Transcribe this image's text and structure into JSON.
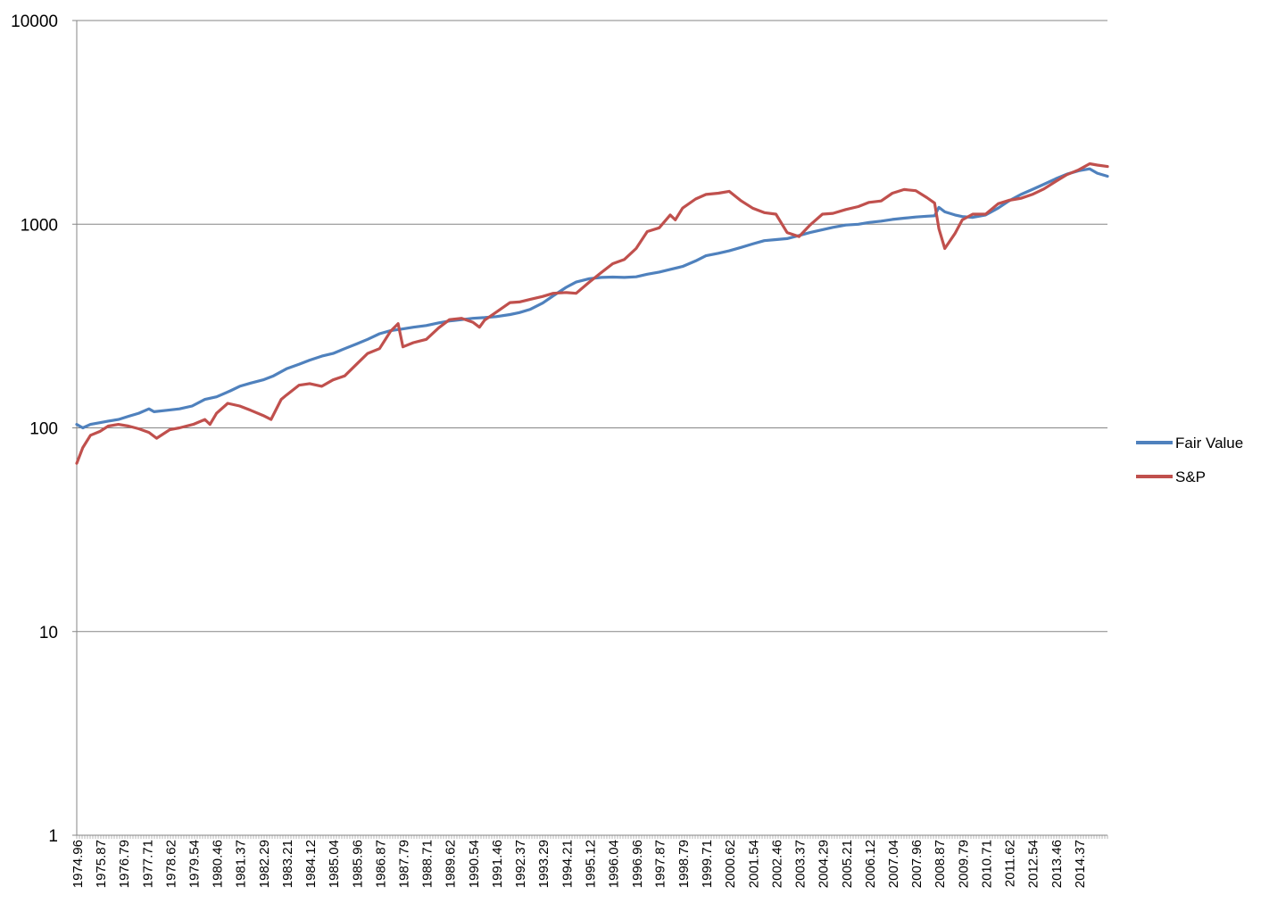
{
  "chart_data": {
    "type": "line",
    "title": "",
    "xlabel": "",
    "ylabel": "",
    "y_scale": "log",
    "ylim": [
      1,
      10000
    ],
    "xlim": [
      1974.96,
      2015.5
    ],
    "y_ticks": [
      "1",
      "10",
      "100",
      "1000",
      "10000"
    ],
    "x_ticks": [
      "1974.96",
      "1975.87",
      "1976.79",
      "1977.71",
      "1978.62",
      "1979.54",
      "1980.46",
      "1981.37",
      "1982.29",
      "1983.21",
      "1984.12",
      "1985.04",
      "1985.96",
      "1986.87",
      "1987.79",
      "1988.71",
      "1989.62",
      "1990.54",
      "1991.46",
      "1992.37",
      "1993.29",
      "1994.21",
      "1995.12",
      "1996.04",
      "1996.96",
      "1997.87",
      "1998.79",
      "1999.71",
      "2000.62",
      "2001.54",
      "2002.46",
      "2003.37",
      "2004.29",
      "2005.21",
      "2006.12",
      "2007.04",
      "2007.96",
      "2008.87",
      "2009.79",
      "2010.71",
      "2011.62",
      "2012.54",
      "2013.46",
      "2014.37"
    ],
    "grid": "horizontal major gridlines",
    "legend_position": "right",
    "colors": {
      "Fair Value": "#4f81bd",
      "S&P": "#c0504d"
    },
    "series": [
      {
        "name": "Fair Value",
        "color": "#4f81bd",
        "points": [
          [
            1974.96,
            104
          ],
          [
            1975.2,
            100
          ],
          [
            1975.5,
            104
          ],
          [
            1975.87,
            106
          ],
          [
            1976.2,
            108
          ],
          [
            1976.6,
            110
          ],
          [
            1977.0,
            114
          ],
          [
            1977.4,
            118
          ],
          [
            1977.8,
            124
          ],
          [
            1978.0,
            120
          ],
          [
            1978.5,
            122
          ],
          [
            1979.0,
            124
          ],
          [
            1979.5,
            128
          ],
          [
            1980.0,
            138
          ],
          [
            1980.46,
            142
          ],
          [
            1981.0,
            152
          ],
          [
            1981.37,
            160
          ],
          [
            1981.8,
            166
          ],
          [
            1982.29,
            172
          ],
          [
            1982.7,
            180
          ],
          [
            1983.21,
            195
          ],
          [
            1983.7,
            205
          ],
          [
            1984.12,
            215
          ],
          [
            1984.6,
            225
          ],
          [
            1985.04,
            232
          ],
          [
            1985.5,
            245
          ],
          [
            1985.96,
            258
          ],
          [
            1986.4,
            272
          ],
          [
            1986.87,
            290
          ],
          [
            1987.3,
            300
          ],
          [
            1987.79,
            306
          ],
          [
            1988.2,
            312
          ],
          [
            1988.71,
            318
          ],
          [
            1989.2,
            328
          ],
          [
            1989.62,
            335
          ],
          [
            1990.1,
            340
          ],
          [
            1990.54,
            345
          ],
          [
            1991.0,
            348
          ],
          [
            1991.46,
            352
          ],
          [
            1992.0,
            360
          ],
          [
            1992.37,
            368
          ],
          [
            1992.8,
            382
          ],
          [
            1993.29,
            410
          ],
          [
            1993.7,
            445
          ],
          [
            1994.21,
            490
          ],
          [
            1994.6,
            520
          ],
          [
            1995.12,
            540
          ],
          [
            1995.6,
            548
          ],
          [
            1996.04,
            550
          ],
          [
            1996.5,
            548
          ],
          [
            1996.96,
            552
          ],
          [
            1997.4,
            568
          ],
          [
            1997.87,
            582
          ],
          [
            1998.3,
            600
          ],
          [
            1998.79,
            620
          ],
          [
            1999.3,
            660
          ],
          [
            1999.71,
            700
          ],
          [
            2000.2,
            720
          ],
          [
            2000.62,
            740
          ],
          [
            2001.1,
            770
          ],
          [
            2001.54,
            800
          ],
          [
            2002.0,
            830
          ],
          [
            2002.46,
            840
          ],
          [
            2002.9,
            850
          ],
          [
            2003.37,
            880
          ],
          [
            2003.8,
            910
          ],
          [
            2004.29,
            940
          ],
          [
            2004.7,
            965
          ],
          [
            2005.21,
            990
          ],
          [
            2005.7,
            1000
          ],
          [
            2006.12,
            1020
          ],
          [
            2006.6,
            1035
          ],
          [
            2007.04,
            1055
          ],
          [
            2007.5,
            1070
          ],
          [
            2007.96,
            1085
          ],
          [
            2008.4,
            1095
          ],
          [
            2008.7,
            1100
          ],
          [
            2008.87,
            1210
          ],
          [
            2009.1,
            1150
          ],
          [
            2009.5,
            1110
          ],
          [
            2009.79,
            1090
          ],
          [
            2010.2,
            1080
          ],
          [
            2010.71,
            1110
          ],
          [
            2011.2,
            1200
          ],
          [
            2011.62,
            1300
          ],
          [
            2012.1,
            1400
          ],
          [
            2012.54,
            1480
          ],
          [
            2013.0,
            1570
          ],
          [
            2013.46,
            1670
          ],
          [
            2013.9,
            1760
          ],
          [
            2014.37,
            1830
          ],
          [
            2014.8,
            1870
          ],
          [
            2015.1,
            1780
          ],
          [
            2015.5,
            1720
          ]
        ]
      },
      {
        "name": "S&P",
        "color": "#c0504d",
        "points": [
          [
            1974.96,
            67
          ],
          [
            1975.2,
            80
          ],
          [
            1975.5,
            92
          ],
          [
            1975.87,
            96
          ],
          [
            1976.2,
            102
          ],
          [
            1976.6,
            104
          ],
          [
            1977.0,
            102
          ],
          [
            1977.4,
            99
          ],
          [
            1977.8,
            95
          ],
          [
            1978.1,
            89
          ],
          [
            1978.62,
            98
          ],
          [
            1979.0,
            100
          ],
          [
            1979.54,
            104
          ],
          [
            1980.0,
            110
          ],
          [
            1980.2,
            104
          ],
          [
            1980.46,
            118
          ],
          [
            1980.9,
            132
          ],
          [
            1981.37,
            128
          ],
          [
            1981.8,
            122
          ],
          [
            1982.29,
            115
          ],
          [
            1982.6,
            110
          ],
          [
            1983.0,
            138
          ],
          [
            1983.21,
            145
          ],
          [
            1983.7,
            162
          ],
          [
            1984.12,
            165
          ],
          [
            1984.6,
            160
          ],
          [
            1985.04,
            172
          ],
          [
            1985.5,
            180
          ],
          [
            1985.96,
            205
          ],
          [
            1986.4,
            232
          ],
          [
            1986.87,
            245
          ],
          [
            1987.3,
            298
          ],
          [
            1987.6,
            325
          ],
          [
            1987.79,
            250
          ],
          [
            1988.2,
            262
          ],
          [
            1988.71,
            272
          ],
          [
            1989.2,
            310
          ],
          [
            1989.62,
            340
          ],
          [
            1990.1,
            345
          ],
          [
            1990.54,
            330
          ],
          [
            1990.8,
            312
          ],
          [
            1991.0,
            338
          ],
          [
            1991.46,
            370
          ],
          [
            1992.0,
            412
          ],
          [
            1992.37,
            415
          ],
          [
            1992.8,
            428
          ],
          [
            1993.29,
            442
          ],
          [
            1993.7,
            458
          ],
          [
            1994.21,
            462
          ],
          [
            1994.6,
            458
          ],
          [
            1995.12,
            520
          ],
          [
            1995.6,
            580
          ],
          [
            1996.04,
            640
          ],
          [
            1996.5,
            672
          ],
          [
            1996.96,
            760
          ],
          [
            1997.4,
            920
          ],
          [
            1997.87,
            960
          ],
          [
            1998.3,
            1110
          ],
          [
            1998.5,
            1050
          ],
          [
            1998.79,
            1200
          ],
          [
            1999.3,
            1330
          ],
          [
            1999.71,
            1400
          ],
          [
            2000.2,
            1420
          ],
          [
            2000.62,
            1450
          ],
          [
            2001.1,
            1300
          ],
          [
            2001.54,
            1200
          ],
          [
            2002.0,
            1140
          ],
          [
            2002.46,
            1120
          ],
          [
            2002.9,
            910
          ],
          [
            2003.37,
            870
          ],
          [
            2003.8,
            990
          ],
          [
            2004.29,
            1120
          ],
          [
            2004.7,
            1130
          ],
          [
            2005.21,
            1180
          ],
          [
            2005.7,
            1220
          ],
          [
            2006.12,
            1280
          ],
          [
            2006.6,
            1300
          ],
          [
            2007.04,
            1420
          ],
          [
            2007.5,
            1480
          ],
          [
            2007.96,
            1460
          ],
          [
            2008.4,
            1350
          ],
          [
            2008.7,
            1270
          ],
          [
            2008.87,
            950
          ],
          [
            2009.1,
            760
          ],
          [
            2009.5,
            900
          ],
          [
            2009.79,
            1050
          ],
          [
            2010.2,
            1120
          ],
          [
            2010.71,
            1120
          ],
          [
            2011.2,
            1260
          ],
          [
            2011.62,
            1310
          ],
          [
            2012.1,
            1340
          ],
          [
            2012.54,
            1400
          ],
          [
            2013.0,
            1490
          ],
          [
            2013.46,
            1620
          ],
          [
            2013.9,
            1750
          ],
          [
            2014.37,
            1850
          ],
          [
            2014.8,
            1980
          ],
          [
            2015.1,
            1950
          ],
          [
            2015.5,
            1920
          ]
        ]
      }
    ]
  },
  "legend": {
    "items": [
      {
        "label": "Fair Value",
        "color": "#4f81bd"
      },
      {
        "label": "S&P",
        "color": "#c0504d"
      }
    ]
  }
}
